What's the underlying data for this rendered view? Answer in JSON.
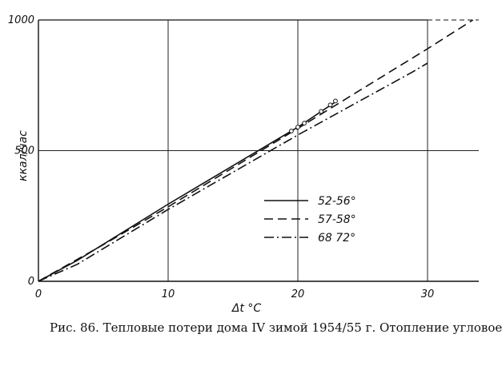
{
  "chart_data": {
    "type": "line",
    "xlabel": "Δt °C",
    "ylabel": "ккал/час",
    "xlim": [
      0,
      34
    ],
    "ylim": [
      0,
      1000
    ],
    "x_ticks": [
      "0",
      "10",
      "20",
      "30"
    ],
    "y_ticks": [
      "0",
      "500",
      "1000"
    ],
    "grid": true,
    "legend_position": "center-right",
    "series": [
      {
        "name": "52-56°",
        "style": "solid",
        "color": "#111111",
        "x": [
          0,
          3,
          10,
          20,
          23
        ],
        "y": [
          0,
          80,
          295,
          590,
          690
        ]
      },
      {
        "name": "57-58°",
        "style": "dashed",
        "color": "#111111",
        "x": [
          0,
          5,
          10,
          20,
          30,
          33.5
        ],
        "y": [
          0,
          140,
          285,
          585,
          890,
          1000
        ]
      },
      {
        "name": "68 72°",
        "style": "dashdot",
        "color": "#111111",
        "x": [
          0,
          3,
          10,
          20,
          28.8,
          30
        ],
        "y": [
          0,
          65,
          275,
          560,
          800,
          835
        ]
      }
    ],
    "points": [
      {
        "x": 19.5,
        "y": 575
      },
      {
        "x": 20.0,
        "y": 590
      },
      {
        "x": 20.5,
        "y": 605
      },
      {
        "x": 21.8,
        "y": 650
      },
      {
        "x": 22.5,
        "y": 675
      },
      {
        "x": 22.9,
        "y": 690
      }
    ]
  },
  "caption": "Рис. 86. Тепловые потери дома IV зимой 1954/55 г. Отопление угловое"
}
